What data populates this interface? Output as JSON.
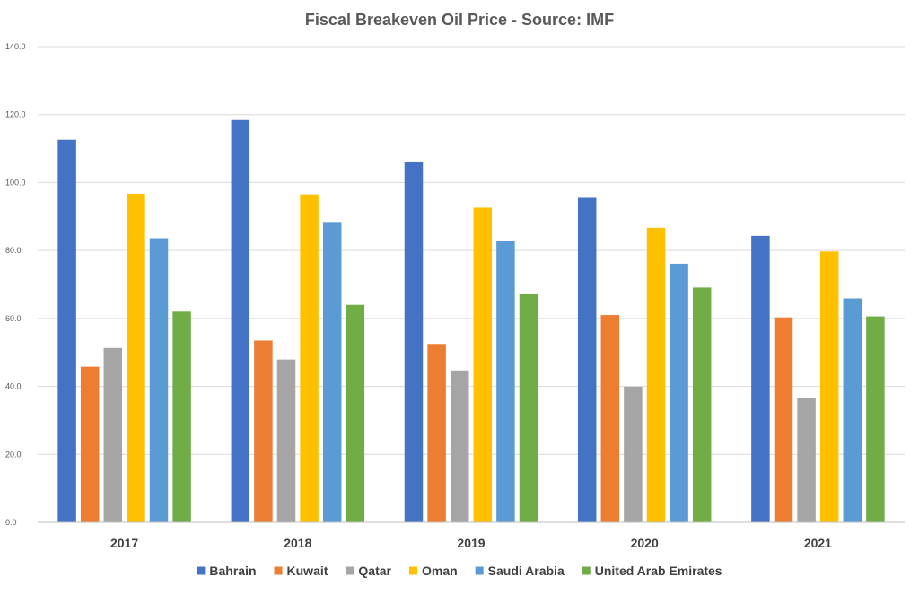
{
  "chart_data": {
    "type": "bar",
    "title": "Fiscal Breakeven Oil Price - Source: IMF",
    "xlabel": "",
    "ylabel": "",
    "categories": [
      "2017",
      "2018",
      "2019",
      "2020",
      "2021"
    ],
    "ylim": [
      0,
      140
    ],
    "y_ticks": [
      "0.0",
      "20.0",
      "40.0",
      "60.0",
      "80.0",
      "100.0",
      "120.0",
      "140.0"
    ],
    "y_tick_values": [
      0,
      20,
      40,
      60,
      80,
      100,
      120,
      140
    ],
    "grid": true,
    "legend_position": "bottom",
    "series": [
      {
        "name": "Bahrain",
        "color": "#4472C4",
        "values": [
          112.6,
          118.4,
          106.2,
          95.5,
          84.3
        ]
      },
      {
        "name": "Kuwait",
        "color": "#ED7D31",
        "values": [
          45.8,
          53.5,
          52.5,
          61.0,
          60.3
        ]
      },
      {
        "name": "Qatar",
        "color": "#A5A5A5",
        "values": [
          51.3,
          47.9,
          44.7,
          39.9,
          36.5
        ]
      },
      {
        "name": "Oman",
        "color": "#FFC000",
        "values": [
          96.7,
          96.5,
          92.6,
          86.7,
          79.7
        ]
      },
      {
        "name": "Saudi Arabia",
        "color": "#5B9BD5",
        "values": [
          83.6,
          88.4,
          82.7,
          76.1,
          65.9
        ]
      },
      {
        "name": "United Arab Emirates",
        "color": "#70AD47",
        "values": [
          62.0,
          64.0,
          67.1,
          69.1,
          60.6
        ]
      }
    ]
  }
}
